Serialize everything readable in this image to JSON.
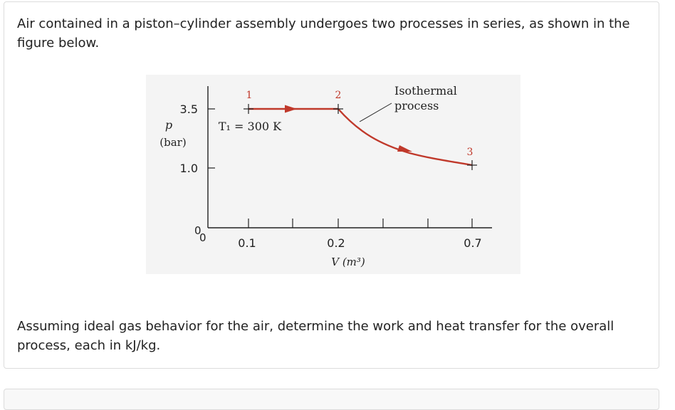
{
  "problem": {
    "intro": "Air contained in a piston–cylinder assembly undergoes two processes in series, as shown in the figure below.",
    "question": "Assuming ideal gas behavior for the air, determine the work and heat transfer for the overall process, each in kJ/kg."
  },
  "figure": {
    "y_axis_symbol": "p",
    "y_axis_unit": "(bar)",
    "y_ticks": [
      "3.5",
      "1.0"
    ],
    "y_zero": "0",
    "x_zero": "0",
    "x_ticks": [
      "0.1",
      "0.2",
      "0.7"
    ],
    "x_axis_label": "V (m³)",
    "state_labels": [
      "1",
      "2",
      "3"
    ],
    "temperature_label": "T₁ = 300 K",
    "annotation_line1": "Isothermal",
    "annotation_line2": "process",
    "colors": {
      "process_line": "#c0392b",
      "axes": "#222222",
      "background": "#f4f4f4"
    }
  }
}
